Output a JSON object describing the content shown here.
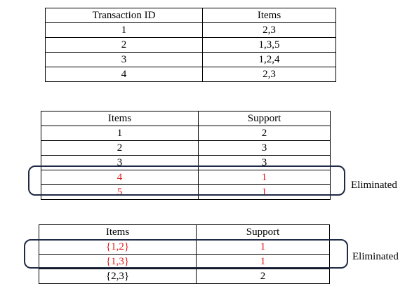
{
  "transactions_table": {
    "headers": [
      "Transaction ID",
      "Items"
    ],
    "rows": [
      [
        "1",
        "2,3"
      ],
      [
        "2",
        "1,3,5"
      ],
      [
        "3",
        "1,2,4"
      ],
      [
        "4",
        "2,3"
      ]
    ]
  },
  "single_item_support_table": {
    "headers": [
      "Items",
      "Support"
    ],
    "rows": [
      [
        "1",
        "2"
      ],
      [
        "2",
        "3"
      ],
      [
        "3",
        "3"
      ],
      [
        "4",
        "1"
      ],
      [
        "5",
        "1"
      ]
    ],
    "eliminated_rows": [
      3,
      4
    ]
  },
  "pair_support_table": {
    "headers": [
      "Items",
      "Support"
    ],
    "rows": [
      [
        "{1,2}",
        "1"
      ],
      [
        "{1,3}",
        "1"
      ],
      [
        "{2,3}",
        "2"
      ]
    ],
    "eliminated_rows": [
      0,
      1
    ]
  },
  "labels": {
    "eliminated_1": "Eliminated",
    "eliminated_2": "Eliminated"
  },
  "colors": {
    "eliminated_text": "#e01b1b",
    "highlight_box": "#1f2a44"
  }
}
